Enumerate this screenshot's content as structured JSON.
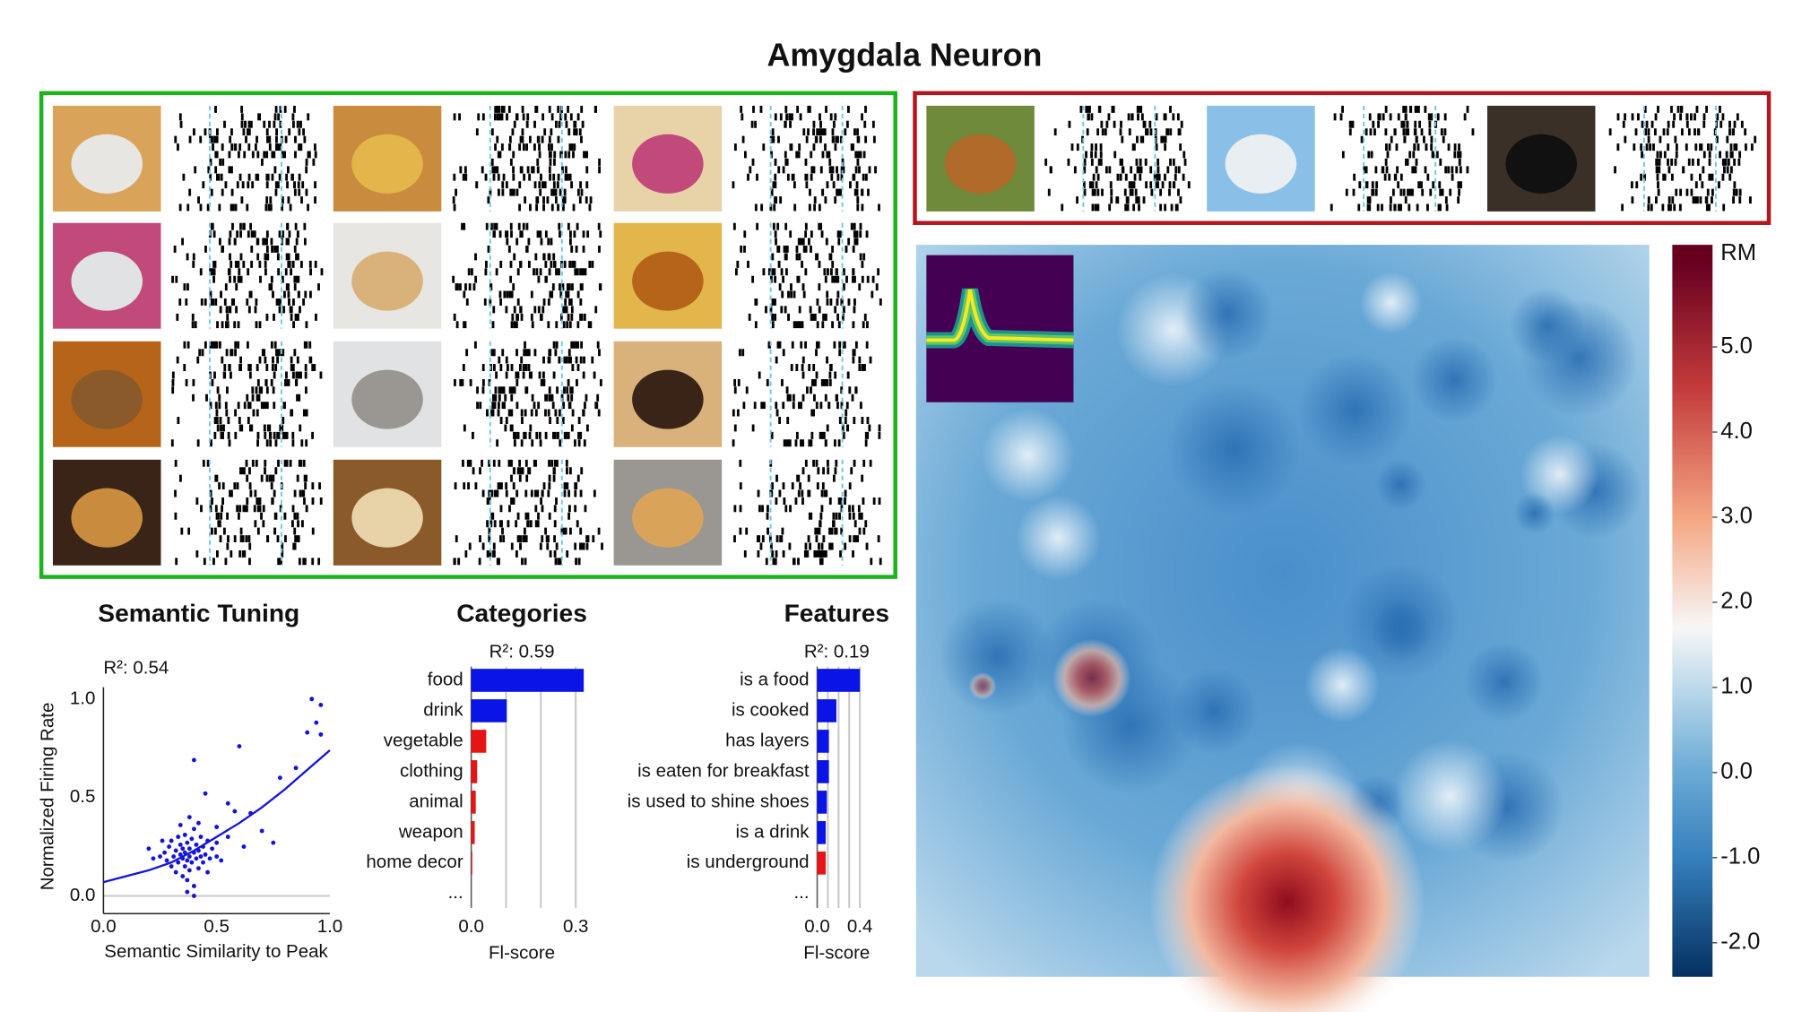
{
  "title": "Amygdala Neuron",
  "chart_data": [
    {
      "type": "scatter",
      "title": "Semantic Tuning",
      "annotation": "R²: 0.54",
      "x_label": "Semantic Similarity to Peak",
      "y_label": "Normalized Firing Rate",
      "color": "#1414d8",
      "xlim": [
        0,
        1
      ],
      "ylim": [
        -0.09,
        1.06
      ],
      "xticks": [
        {
          "value": 0,
          "label": "0.0"
        },
        {
          "value": 0.5,
          "label": "0.5"
        },
        {
          "value": 1,
          "label": "1.0"
        }
      ],
      "yticks": [
        {
          "value": 0,
          "label": "0.0"
        },
        {
          "value": 0.5,
          "label": "0.5"
        },
        {
          "value": 1,
          "label": "1.0"
        }
      ],
      "x": [
        0.25,
        0.27,
        0.28,
        0.29,
        0.3,
        0.3,
        0.31,
        0.32,
        0.32,
        0.33,
        0.33,
        0.34,
        0.34,
        0.35,
        0.35,
        0.35,
        0.36,
        0.36,
        0.36,
        0.37,
        0.37,
        0.37,
        0.38,
        0.38,
        0.38,
        0.39,
        0.39,
        0.4,
        0.4,
        0.4,
        0.41,
        0.41,
        0.42,
        0.42,
        0.43,
        0.43,
        0.44,
        0.44,
        0.45,
        0.46,
        0.46,
        0.47,
        0.48,
        0.5,
        0.5,
        0.52,
        0.22,
        0.2,
        0.26,
        0.34,
        0.38,
        0.42,
        0.4,
        0.37,
        0.92,
        0.96,
        0.94,
        0.9,
        0.96,
        0.6,
        0.4,
        0.65,
        0.78,
        0.75,
        0.7,
        0.55,
        0.45,
        0.5,
        0.58,
        0.62,
        0.55,
        0.85
      ],
      "y": [
        0.2,
        0.22,
        0.18,
        0.25,
        0.15,
        0.28,
        0.2,
        0.12,
        0.23,
        0.3,
        0.17,
        0.21,
        0.26,
        0.1,
        0.19,
        0.24,
        0.15,
        0.31,
        0.22,
        0.18,
        0.27,
        0.08,
        0.2,
        0.24,
        0.13,
        0.29,
        0.17,
        0.22,
        0.05,
        0.34,
        0.19,
        0.26,
        0.14,
        0.23,
        0.2,
        0.3,
        0.17,
        0.25,
        0.21,
        0.12,
        0.28,
        0.19,
        0.24,
        0.2,
        0.27,
        0.18,
        0.19,
        0.24,
        0.28,
        0.36,
        0.4,
        0.37,
        0.0,
        0.02,
        1.0,
        0.97,
        0.88,
        0.83,
        0.82,
        0.76,
        0.69,
        0.42,
        0.6,
        0.27,
        0.33,
        0.47,
        0.52,
        0.35,
        0.43,
        0.25,
        0.3,
        0.65
      ],
      "curve": {
        "x": [
          0,
          0.1,
          0.2,
          0.3,
          0.4,
          0.5,
          0.6,
          0.7,
          0.8,
          0.9,
          1.0
        ],
        "y": [
          0.07,
          0.1,
          0.13,
          0.17,
          0.23,
          0.3,
          0.37,
          0.45,
          0.54,
          0.64,
          0.74
        ]
      }
    },
    {
      "type": "barh",
      "title": "Categories",
      "annotation": "R²: 0.59",
      "x_label": "Fl-score",
      "categories": [
        "food",
        "drink",
        "vegetable",
        "clothing",
        "animal",
        "weapon",
        "home decor",
        "..."
      ],
      "values": [
        0.323,
        0.102,
        0.043,
        0.017,
        0.013,
        0.01,
        0.003,
        null
      ],
      "colors": [
        "#0a14e6",
        "#0a14e6",
        "#e61414",
        "#e61414",
        "#e61414",
        "#e61414",
        "#e61414",
        null
      ],
      "xlim": [
        0,
        0.33
      ],
      "xticks": [
        {
          "value": 0,
          "label": "0.0"
        },
        0.3
      ],
      "xgrid": [
        0.1,
        0.2,
        0.3
      ]
    },
    {
      "type": "barh",
      "title": "Features",
      "annotation": "R²: 0.19",
      "x_label": "Fl-score",
      "categories": [
        "is a food",
        "is cooked",
        "has layers",
        "is eaten for breakfast",
        "is used to shine shoes",
        "is a drink",
        "is underground",
        "..."
      ],
      "values": [
        0.4,
        0.18,
        0.11,
        0.11,
        0.09,
        0.08,
        0.08,
        null
      ],
      "colors": [
        "#0a14e6",
        "#0a14e6",
        "#0a14e6",
        "#0a14e6",
        "#0a14e6",
        "#0a14e6",
        "#e61414",
        null
      ],
      "xlim": [
        0,
        0.42
      ],
      "xticks": [
        {
          "value": 0,
          "label": "0.0"
        },
        0.4
      ],
      "xgrid": [
        0.1,
        0.2,
        0.3,
        0.4
      ]
    },
    {
      "type": "colorbar",
      "label": "RM",
      "clim": [
        -2.4,
        6.2
      ],
      "ticks": [
        {
          "value": 5,
          "label": "5.0"
        },
        {
          "value": 4,
          "label": "4.0"
        },
        {
          "value": 3,
          "label": "3.0"
        },
        {
          "value": 2,
          "label": "2.0"
        },
        {
          "value": 1,
          "label": "1.0"
        },
        {
          "value": 0,
          "label": "0.0"
        },
        {
          "value": -1,
          "label": "-1.0"
        },
        {
          "value": -2,
          "label": "-2.0"
        }
      ]
    }
  ]
}
